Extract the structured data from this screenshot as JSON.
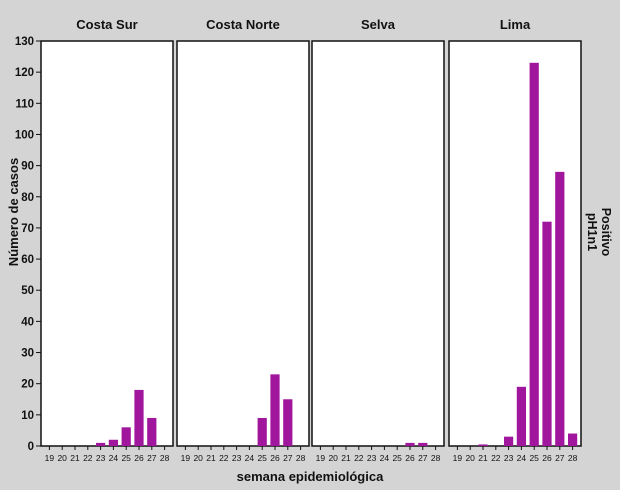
{
  "chart_data": {
    "type": "bar",
    "xlabel": "semana epidemiológica",
    "ylabel": "Número de casos",
    "ylim": [
      0,
      130
    ],
    "yticks": [
      0,
      10,
      20,
      30,
      40,
      50,
      60,
      70,
      80,
      90,
      100,
      110,
      120,
      130
    ],
    "categories": [
      "19",
      "20",
      "21",
      "22",
      "23",
      "24",
      "25",
      "26",
      "27",
      "28"
    ],
    "facet_row_label": [
      "pH1n1",
      "Positivo"
    ],
    "bar_color": "#a0169c",
    "panels": [
      {
        "name": "Costa Sur",
        "values": [
          0,
          0,
          0,
          0,
          1,
          2,
          6,
          18,
          9,
          0
        ]
      },
      {
        "name": "Costa Norte",
        "values": [
          0,
          0,
          0,
          0,
          0,
          0,
          9,
          23,
          15,
          0
        ]
      },
      {
        "name": "Selva",
        "values": [
          0,
          0,
          0,
          0,
          0,
          0,
          0,
          1,
          1,
          0
        ]
      },
      {
        "name": "Lima",
        "values": [
          0,
          0,
          0.5,
          0,
          3,
          19,
          123,
          72,
          88,
          4
        ]
      }
    ]
  }
}
